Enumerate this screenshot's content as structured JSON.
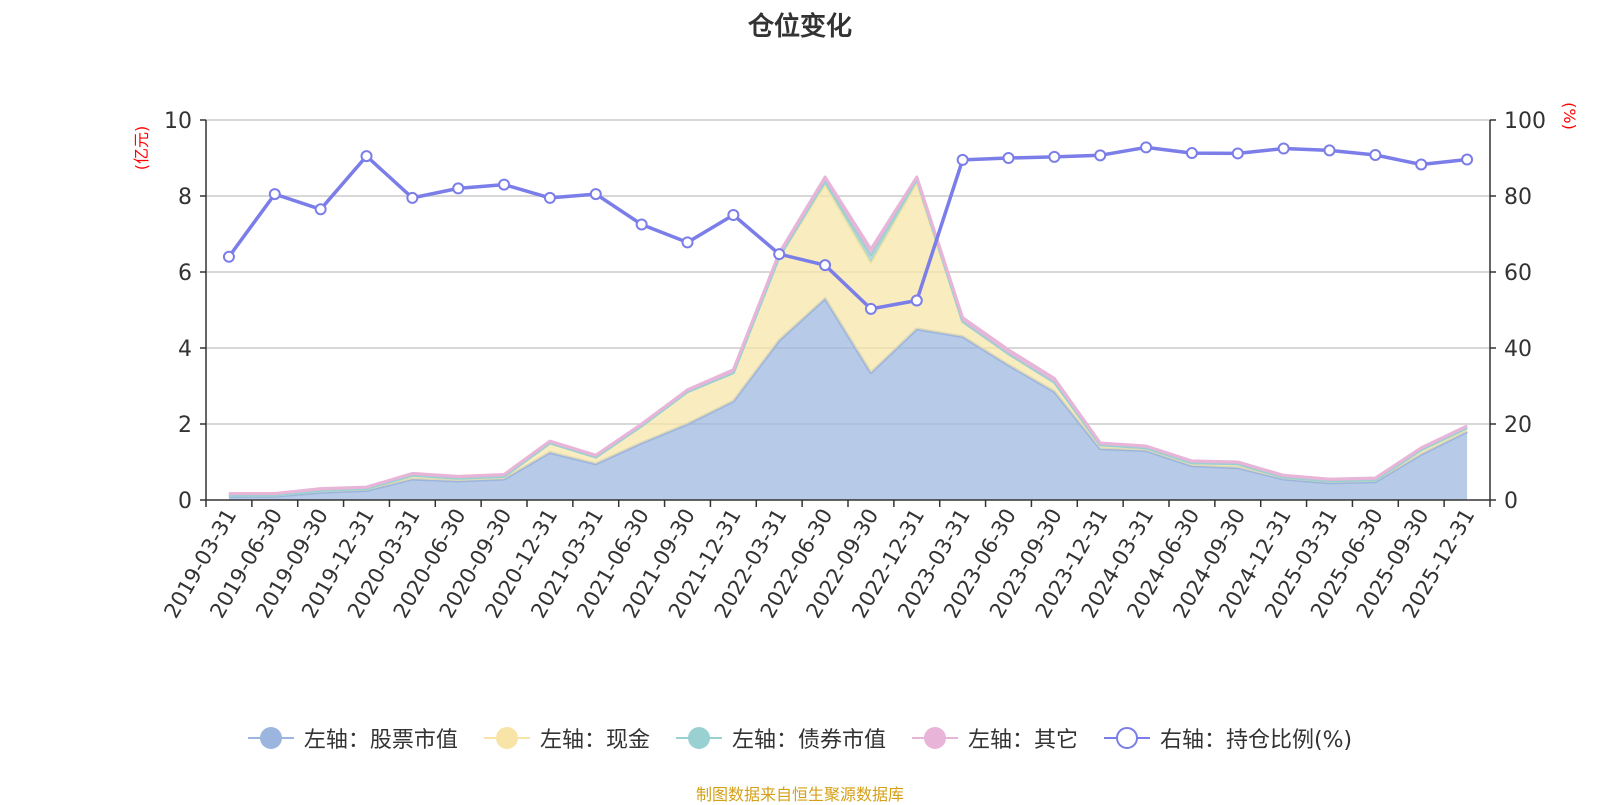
{
  "chart_data": {
    "type": "area",
    "title": "仓位变化",
    "x": [
      "2019-03-31",
      "2019-06-30",
      "2019-09-30",
      "2019-12-31",
      "2020-03-31",
      "2020-06-30",
      "2020-09-30",
      "2020-12-31",
      "2021-03-31",
      "2021-06-30",
      "2021-09-30",
      "2021-12-31",
      "2022-03-31",
      "2022-06-30",
      "2022-09-30",
      "2022-12-31",
      "2023-03-31",
      "2023-06-30",
      "2023-09-30",
      "2023-12-31",
      "2024-03-31",
      "2024-06-30",
      "2024-09-30",
      "2024-12-31",
      "2025-03-31",
      "2025-06-30",
      "2025-09-30",
      "2025-12-31"
    ],
    "y_left_label": "(亿元)",
    "y_right_label": "(%)",
    "y_left_range": [
      0,
      10
    ],
    "y_right_range": [
      0,
      100
    ],
    "y_left_ticks": [
      0,
      2,
      4,
      6,
      8,
      10
    ],
    "y_right_ticks": [
      0,
      20,
      40,
      60,
      80,
      100
    ],
    "grid": true,
    "legend_position": "bottom",
    "series": [
      {
        "name": "左轴：股票市值",
        "axis": "left",
        "stack": true,
        "color": "#9bb5de",
        "values": [
          0.1,
          0.1,
          0.2,
          0.25,
          0.55,
          0.5,
          0.55,
          1.25,
          0.95,
          1.5,
          2.0,
          2.6,
          4.2,
          5.3,
          3.35,
          4.5,
          4.3,
          3.55,
          2.85,
          1.35,
          1.3,
          0.9,
          0.85,
          0.55,
          0.45,
          0.48,
          1.2,
          1.8
        ]
      },
      {
        "name": "左轴：现金",
        "axis": "left",
        "stack": true,
        "color": "#f7e4a6",
        "values": [
          0.03,
          0.03,
          0.05,
          0.05,
          0.1,
          0.07,
          0.07,
          0.25,
          0.18,
          0.45,
          0.85,
          0.75,
          2.2,
          3.0,
          2.9,
          3.85,
          0.4,
          0.3,
          0.25,
          0.1,
          0.07,
          0.08,
          0.1,
          0.05,
          0.05,
          0.05,
          0.12,
          0.1
        ]
      },
      {
        "name": "左轴：债券市值",
        "axis": "left",
        "stack": true,
        "color": "#99d1d3",
        "values": [
          0,
          0,
          0,
          0,
          0,
          0,
          0,
          0,
          0,
          0,
          0,
          0,
          0,
          0.1,
          0.2,
          0.1,
          0,
          0,
          0,
          0,
          0,
          0,
          0,
          0,
          0,
          0,
          0,
          0
        ]
      },
      {
        "name": "左轴：其它",
        "axis": "left",
        "stack": true,
        "color": "#e8b4d8",
        "values": [
          0.04,
          0.04,
          0.05,
          0.04,
          0.05,
          0.05,
          0.05,
          0.05,
          0.05,
          0.05,
          0.05,
          0.08,
          0.1,
          0.1,
          0.15,
          0.05,
          0.1,
          0.1,
          0.1,
          0.05,
          0.05,
          0.05,
          0.05,
          0.05,
          0.05,
          0.05,
          0.05,
          0.05
        ]
      },
      {
        "name": "右轴：持仓比例(%)",
        "axis": "right",
        "type": "line",
        "color": "#7b7de8",
        "values": [
          64,
          80.5,
          76.5,
          90.5,
          79.5,
          82,
          83,
          79.5,
          80.5,
          72.5,
          67.8,
          75,
          64.7,
          61.8,
          50.3,
          52.5,
          89.5,
          90,
          90.3,
          90.7,
          92.8,
          91.3,
          91.2,
          92.5,
          92,
          90.8,
          88.3,
          89.6
        ]
      }
    ]
  },
  "footer": {
    "source_note": "制图数据来自恒生聚源数据库"
  }
}
